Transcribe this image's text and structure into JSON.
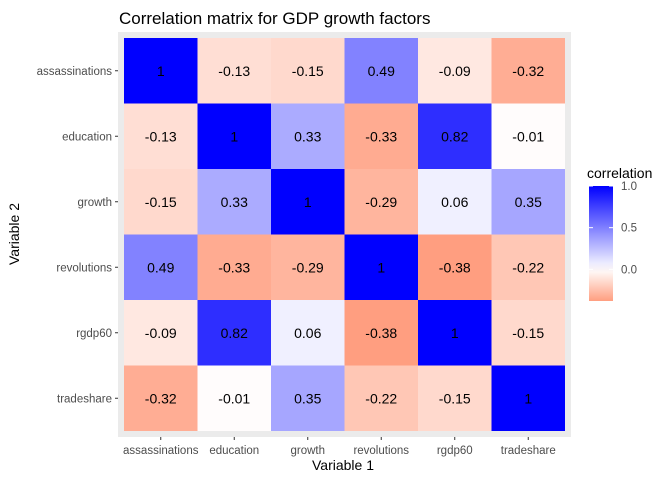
{
  "chart_data": {
    "type": "heatmap",
    "title": "Correlation matrix for GDP growth factors",
    "xlabel": "Variable 1",
    "ylabel": "Variable 2",
    "x_categories": [
      "assassinations",
      "education",
      "growth",
      "revolutions",
      "rgdp60",
      "tradeshare"
    ],
    "y_categories": [
      "assassinations",
      "education",
      "growth",
      "revolutions",
      "rgdp60",
      "tradeshare"
    ],
    "values": [
      [
        1,
        -0.13,
        -0.15,
        0.49,
        -0.09,
        -0.32
      ],
      [
        -0.13,
        1,
        0.33,
        -0.33,
        0.82,
        -0.01
      ],
      [
        -0.15,
        0.33,
        1,
        -0.29,
        0.06,
        0.35
      ],
      [
        0.49,
        -0.33,
        -0.29,
        1,
        -0.38,
        -0.22
      ],
      [
        -0.09,
        0.82,
        0.06,
        -0.38,
        1,
        -0.15
      ],
      [
        -0.32,
        -0.01,
        0.35,
        -0.22,
        -0.15,
        1
      ]
    ],
    "cell_labels": [
      [
        "1",
        "-0.13",
        "-0.15",
        "0.49",
        "-0.09",
        "-0.32"
      ],
      [
        "-0.13",
        "1",
        "0.33",
        "-0.33",
        "0.82",
        "-0.01"
      ],
      [
        "-0.15",
        "0.33",
        "1",
        "-0.29",
        "0.06",
        "0.35"
      ],
      [
        "0.49",
        "-0.33",
        "-0.29",
        "1",
        "-0.38",
        "-0.22"
      ],
      [
        "-0.09",
        "0.82",
        "0.06",
        "-0.38",
        "1",
        "-0.15"
      ],
      [
        "-0.32",
        "-0.01",
        "0.35",
        "-0.22",
        "-0.15",
        "1"
      ]
    ],
    "legend": {
      "title": "correlation",
      "ticks": [
        "1.0",
        "0.5",
        "0.0"
      ],
      "tick_values": [
        1.0,
        0.5,
        0.0
      ],
      "range": [
        -0.38,
        1.0
      ],
      "placement": "right"
    },
    "colors": {
      "high": "#0000ff",
      "mid": "#ffffff",
      "low": "#ff9e80",
      "panel_background": "#ebebeb"
    }
  }
}
